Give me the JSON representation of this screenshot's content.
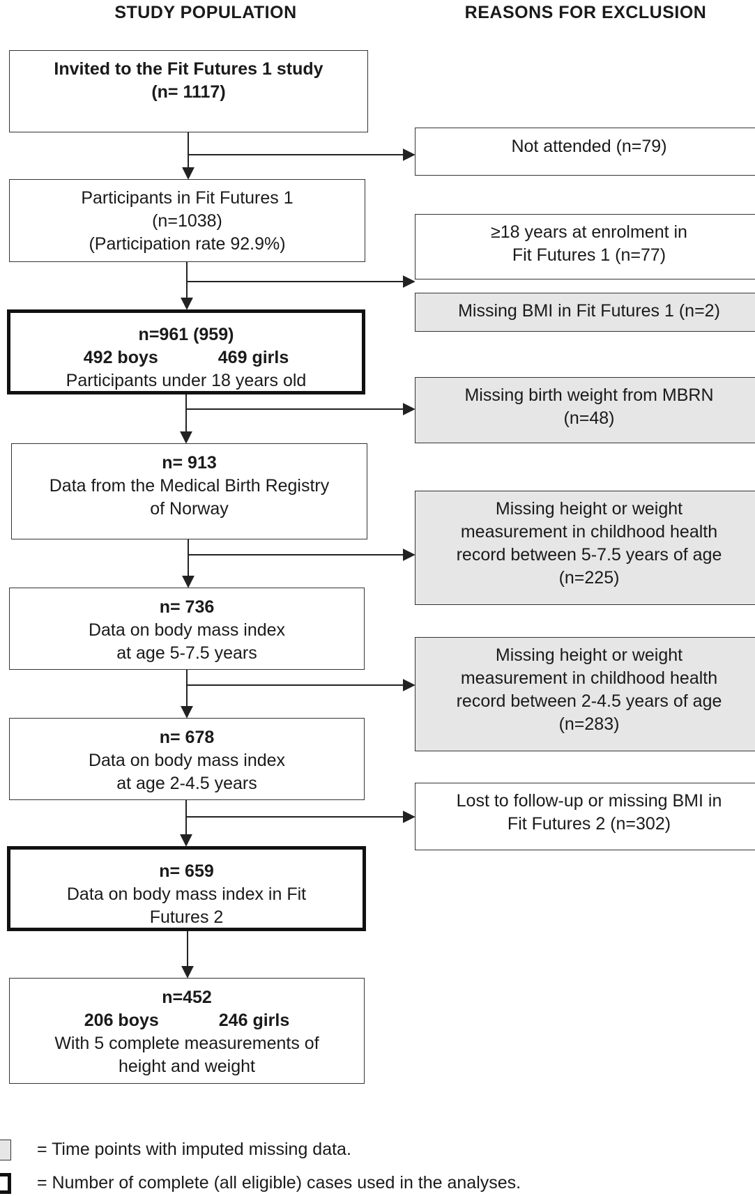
{
  "headers": {
    "left": "STUDY POPULATION",
    "right": "REASONS FOR EXCLUSION"
  },
  "population": {
    "invited": {
      "line1": "Invited to the Fit Futures 1 study",
      "line2": "(n= 1117)"
    },
    "participants": {
      "line1": "Participants in Fit Futures 1",
      "line2": "(n=1038)",
      "line3": "(Participation rate 92.9%)"
    },
    "under18": {
      "line1": "n=961 (959)",
      "boys": "492 boys",
      "girls": "469 girls",
      "line3": "Participants under 18 years old"
    },
    "mbrn": {
      "line1": "n= 913",
      "line2": "Data from the Medical Birth Registry",
      "line3": "of Norway"
    },
    "bmi57": {
      "line1": "n= 736",
      "line2": "Data on body mass index",
      "line3": "at age 5-7.5 years"
    },
    "bmi245": {
      "line1": "n= 678",
      "line2": "Data on body mass index",
      "line3": "at age 2-4.5 years"
    },
    "ff2": {
      "line1": "n= 659",
      "line2": "Data on body mass index in Fit",
      "line3": "Futures 2"
    },
    "final": {
      "line1": "n=452",
      "boys": "206 boys",
      "girls": "246 girls",
      "line3": "With 5 complete measurements of",
      "line4": "height and weight"
    }
  },
  "exclusions": {
    "not_attended": {
      "line1": "Not attended (n=79)"
    },
    "age18": {
      "line1": "≥18 years at enrolment in",
      "line2": "Fit Futures 1 (n=77)"
    },
    "missing_bmi_ff1": {
      "line1": "Missing BMI in Fit Futures 1 (n=2)"
    },
    "missing_bw": {
      "line1": "Missing birth weight from MBRN",
      "line2": "(n=48)"
    },
    "missing_57": {
      "line1": "Missing height or weight",
      "line2": "measurement in childhood health",
      "line3": "record between 5-7.5 years of age",
      "line4": "(n=225)"
    },
    "missing_245": {
      "line1": "Missing height or weight",
      "line2": "measurement in childhood health",
      "line3": "record between 2-4.5 years of age",
      "line4": "(n=283)"
    },
    "lost": {
      "line1": "Lost to follow-up or missing BMI in",
      "line2": "Fit Futures 2 (n=302)"
    }
  },
  "legend": {
    "grey": "= Time points with imputed missing data.",
    "thick": "= Number of complete (all eligible) cases used in the analyses."
  },
  "colors": {
    "grey_fill": "#e6e6e6",
    "border": "#333333"
  }
}
